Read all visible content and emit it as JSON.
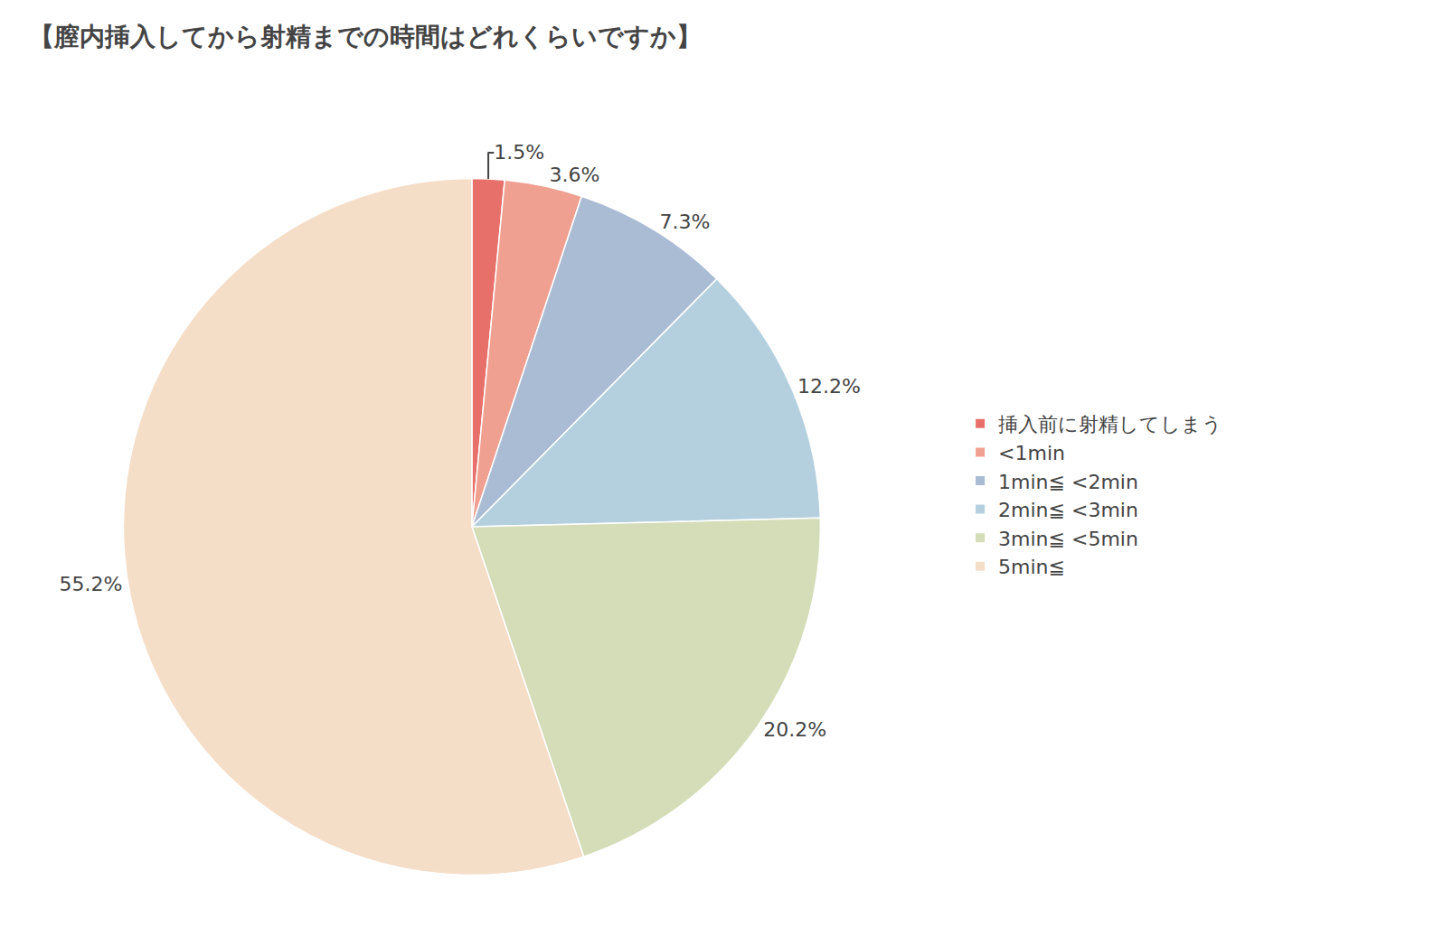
{
  "chart_data": {
    "type": "pie",
    "title": "【膣内挿入してから射精までの時間はどれくらいですか】",
    "categories": [
      "挿入前に射精してしまう",
      "<1min",
      "1min≦ <2min",
      "2min≦ <3min",
      "3min≦ <5min",
      "5min≦"
    ],
    "values": [
      1.5,
      3.6,
      7.3,
      12.2,
      20.2,
      55.2
    ],
    "value_labels": [
      "1.5%",
      "3.6%",
      "7.3%",
      "12.2%",
      "20.2%",
      "55.2%"
    ],
    "colors": [
      "#E8706A",
      "#F0A090",
      "#AABBD4",
      "#B4D0DF",
      "#D4DDB8",
      "#F5DEC8"
    ],
    "data_labels": true,
    "legend": "right"
  }
}
